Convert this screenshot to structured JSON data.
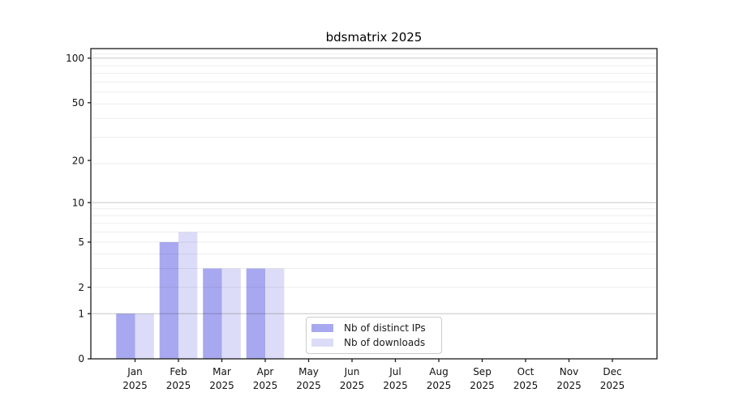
{
  "chart_data": {
    "type": "bar",
    "title": "bdsmatrix 2025",
    "categories": [
      "Jan",
      "Feb",
      "Mar",
      "Apr",
      "May",
      "Jun",
      "Jul",
      "Aug",
      "Sep",
      "Oct",
      "Nov",
      "Dec"
    ],
    "year": "2025",
    "series": [
      {
        "name": "Nb of distinct IPs",
        "color": "#a8a8f0",
        "values": [
          1,
          5,
          3,
          3,
          0,
          0,
          0,
          0,
          0,
          0,
          0,
          0
        ]
      },
      {
        "name": "Nb of downloads",
        "color": "#dcdcf8",
        "values": [
          1,
          6,
          3,
          3,
          0,
          0,
          0,
          0,
          0,
          0,
          0,
          0
        ]
      }
    ],
    "xlabel": "",
    "ylabel": "",
    "yscale": "log1p",
    "yticks": [
      0,
      1,
      2,
      5,
      10,
      20,
      50,
      100
    ],
    "ylim": [
      0,
      116
    ],
    "grid": {
      "on": true,
      "major_values": [
        1,
        10,
        100
      ],
      "minor_values": [
        2,
        3,
        4,
        5,
        6,
        7,
        8,
        9,
        19,
        29,
        39,
        49,
        59,
        69,
        79,
        89,
        107
      ]
    },
    "legend_position": "lower center-left",
    "colors": {
      "spine": "#1a1a1a",
      "tick_label": "#111111",
      "major_grid": "rgba(0,0,0,0.22)",
      "minor_grid": "rgba(0,0,0,0.07)",
      "title": "#000000"
    }
  }
}
